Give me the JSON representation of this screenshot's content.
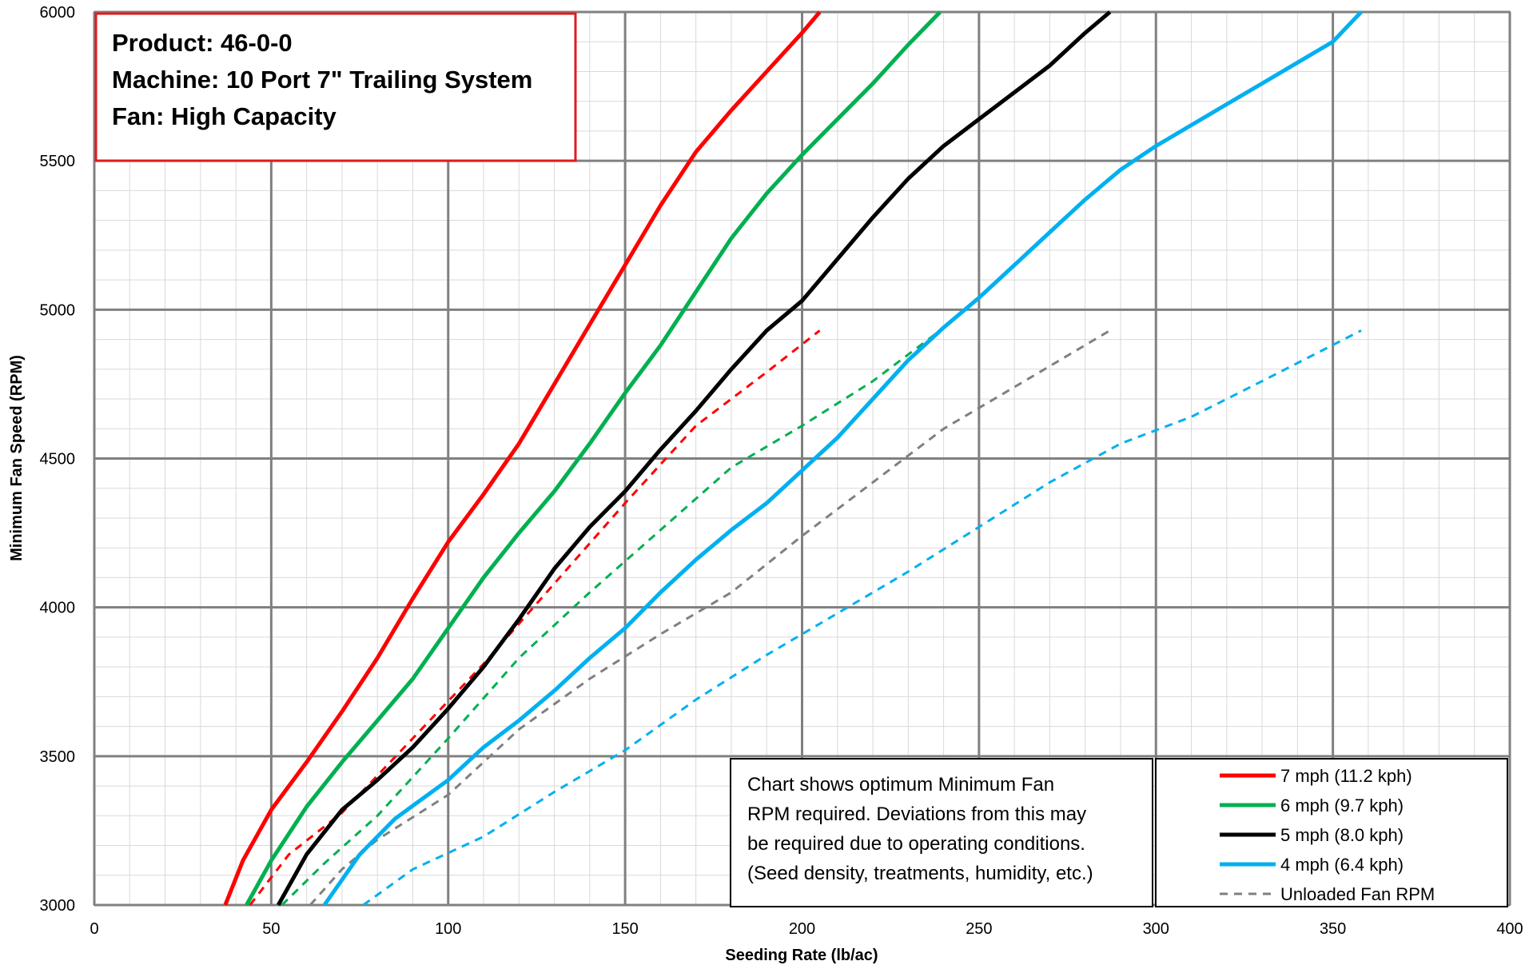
{
  "chart_data": {
    "type": "line",
    "xlabel": "Seeding Rate (lb/ac)",
    "ylabel": "Minimum Fan Speed (RPM)",
    "xlim": [
      0,
      400
    ],
    "ylim": [
      3000,
      6000
    ],
    "x_ticks": [
      0,
      50,
      100,
      150,
      200,
      250,
      300,
      350,
      400
    ],
    "y_ticks": [
      3000,
      3500,
      4000,
      4500,
      5000,
      5500,
      6000
    ],
    "grid": true,
    "info_box": {
      "lines": [
        "Product:  46-0-0",
        "Machine: 10 Port 7\" Trailing System",
        "Fan:  High Capacity"
      ],
      "border_color": "#e11b1b"
    },
    "note": {
      "lines": [
        "Chart shows optimum Minimum Fan",
        "RPM required.  Deviations from this may",
        "be required due to operating conditions.",
        "(Seed density, treatments, humidity, etc.)"
      ]
    },
    "legend_position": "bottom-right",
    "series": [
      {
        "name": "7 mph (11.2 kph)",
        "color": "#ff0000",
        "style": "solid",
        "points": [
          [
            37,
            3000
          ],
          [
            42,
            3150
          ],
          [
            50,
            3320
          ],
          [
            60,
            3480
          ],
          [
            70,
            3650
          ],
          [
            80,
            3830
          ],
          [
            90,
            4030
          ],
          [
            100,
            4220
          ],
          [
            110,
            4380
          ],
          [
            120,
            4550
          ],
          [
            130,
            4750
          ],
          [
            140,
            4950
          ],
          [
            150,
            5150
          ],
          [
            160,
            5350
          ],
          [
            170,
            5530
          ],
          [
            180,
            5670
          ],
          [
            190,
            5800
          ],
          [
            200,
            5930
          ],
          [
            205,
            6000
          ]
        ]
      },
      {
        "name": "6 mph (9.7 kph)",
        "color": "#00b050",
        "style": "solid",
        "points": [
          [
            43,
            3000
          ],
          [
            50,
            3150
          ],
          [
            60,
            3330
          ],
          [
            70,
            3480
          ],
          [
            80,
            3620
          ],
          [
            90,
            3760
          ],
          [
            100,
            3930
          ],
          [
            110,
            4100
          ],
          [
            120,
            4250
          ],
          [
            130,
            4390
          ],
          [
            140,
            4550
          ],
          [
            150,
            4720
          ],
          [
            160,
            4880
          ],
          [
            170,
            5060
          ],
          [
            180,
            5240
          ],
          [
            190,
            5390
          ],
          [
            200,
            5520
          ],
          [
            210,
            5640
          ],
          [
            220,
            5760
          ],
          [
            230,
            5890
          ],
          [
            239,
            6000
          ]
        ]
      },
      {
        "name": "5 mph (8.0 kph)",
        "color": "#000000",
        "style": "solid",
        "points": [
          [
            52,
            3000
          ],
          [
            60,
            3170
          ],
          [
            70,
            3320
          ],
          [
            80,
            3420
          ],
          [
            90,
            3530
          ],
          [
            100,
            3660
          ],
          [
            110,
            3800
          ],
          [
            120,
            3960
          ],
          [
            130,
            4130
          ],
          [
            140,
            4270
          ],
          [
            150,
            4390
          ],
          [
            160,
            4530
          ],
          [
            170,
            4660
          ],
          [
            180,
            4800
          ],
          [
            190,
            4930
          ],
          [
            200,
            5030
          ],
          [
            210,
            5170
          ],
          [
            220,
            5310
          ],
          [
            230,
            5440
          ],
          [
            240,
            5550
          ],
          [
            250,
            5640
          ],
          [
            260,
            5730
          ],
          [
            270,
            5820
          ],
          [
            280,
            5930
          ],
          [
            287,
            6000
          ]
        ]
      },
      {
        "name": "4 mph (6.4 kph)",
        "color": "#00b0f0",
        "style": "solid",
        "points": [
          [
            65,
            3000
          ],
          [
            75,
            3170
          ],
          [
            85,
            3290
          ],
          [
            100,
            3420
          ],
          [
            110,
            3530
          ],
          [
            120,
            3620
          ],
          [
            130,
            3720
          ],
          [
            140,
            3830
          ],
          [
            150,
            3930
          ],
          [
            160,
            4050
          ],
          [
            170,
            4160
          ],
          [
            180,
            4260
          ],
          [
            190,
            4350
          ],
          [
            200,
            4460
          ],
          [
            210,
            4570
          ],
          [
            220,
            4700
          ],
          [
            230,
            4830
          ],
          [
            240,
            4940
          ],
          [
            250,
            5040
          ],
          [
            260,
            5150
          ],
          [
            270,
            5260
          ],
          [
            280,
            5370
          ],
          [
            290,
            5470
          ],
          [
            300,
            5550
          ],
          [
            310,
            5620
          ],
          [
            320,
            5690
          ],
          [
            330,
            5760
          ],
          [
            340,
            5830
          ],
          [
            350,
            5900
          ],
          [
            358,
            6000
          ]
        ]
      },
      {
        "name": "Unloaded Fan RPM",
        "color": "#808080",
        "style": "dashed",
        "points": [
          [
            61,
            3000
          ],
          [
            70,
            3120
          ],
          [
            80,
            3220
          ],
          [
            100,
            3370
          ],
          [
            120,
            3590
          ],
          [
            140,
            3760
          ],
          [
            160,
            3910
          ],
          [
            180,
            4050
          ],
          [
            200,
            4240
          ],
          [
            220,
            4420
          ],
          [
            240,
            4600
          ],
          [
            260,
            4740
          ],
          [
            287,
            4930
          ]
        ]
      },
      {
        "name": "",
        "color": "#ff0000",
        "style": "dashed",
        "points": [
          [
            44,
            3000
          ],
          [
            55,
            3170
          ],
          [
            70,
            3310
          ],
          [
            90,
            3560
          ],
          [
            110,
            3810
          ],
          [
            130,
            4080
          ],
          [
            150,
            4350
          ],
          [
            170,
            4610
          ],
          [
            190,
            4790
          ],
          [
            205,
            4930
          ]
        ]
      },
      {
        "name": "",
        "color": "#00b050",
        "style": "dashed",
        "points": [
          [
            53,
            3000
          ],
          [
            65,
            3140
          ],
          [
            80,
            3300
          ],
          [
            100,
            3560
          ],
          [
            120,
            3830
          ],
          [
            140,
            4050
          ],
          [
            160,
            4260
          ],
          [
            180,
            4470
          ],
          [
            200,
            4610
          ],
          [
            220,
            4760
          ],
          [
            239,
            4930
          ]
        ]
      },
      {
        "name": "",
        "color": "#00b0f0",
        "style": "dashed",
        "points": [
          [
            76,
            3000
          ],
          [
            90,
            3120
          ],
          [
            110,
            3230
          ],
          [
            130,
            3380
          ],
          [
            150,
            3520
          ],
          [
            170,
            3690
          ],
          [
            190,
            3840
          ],
          [
            210,
            3980
          ],
          [
            230,
            4120
          ],
          [
            250,
            4270
          ],
          [
            270,
            4420
          ],
          [
            290,
            4550
          ],
          [
            310,
            4640
          ],
          [
            330,
            4760
          ],
          [
            358,
            4930
          ]
        ]
      }
    ]
  }
}
